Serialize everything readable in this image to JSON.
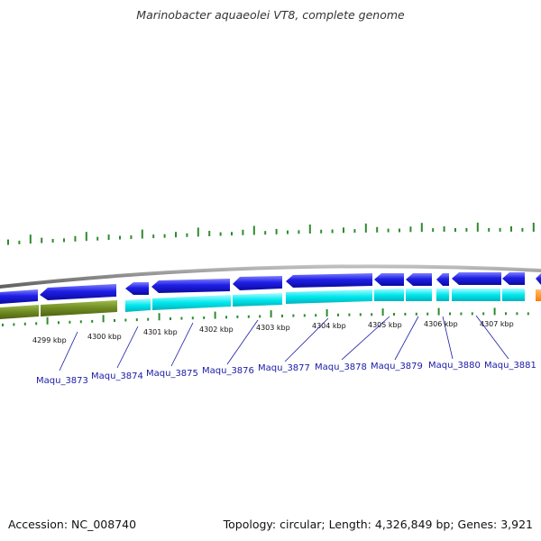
{
  "title": "Marinobacter aquaeolei VT8, complete genome",
  "accession": "Accession: NC_008740",
  "summary": "Topology: circular; Length: 4,326,849 bp; Genes: 3,921",
  "colors": {
    "backbone": "#8a8a8a",
    "cds_forward": "#1f1fe6",
    "cds_reverse_cyan": "#00e8ee",
    "cds_reverse_olive": "#6f8a22",
    "other_feature": "#ff8c00",
    "gc_skew": "#2e8b2e",
    "label_link": "#1a1aa6"
  },
  "tick_labels": [
    "4299 kbp",
    "4300 kbp",
    "4301 kbp",
    "4302 kbp",
    "4303 kbp",
    "4304 kbp",
    "4305 kbp",
    "4306 kbp",
    "4307 kbp"
  ],
  "genes": [
    "Maqu_3873",
    "Maqu_3874",
    "Maqu_3875",
    "Maqu_3876",
    "Maqu_3877",
    "Maqu_3878",
    "Maqu_3879",
    "Maqu_3880",
    "Maqu_3881"
  ]
}
